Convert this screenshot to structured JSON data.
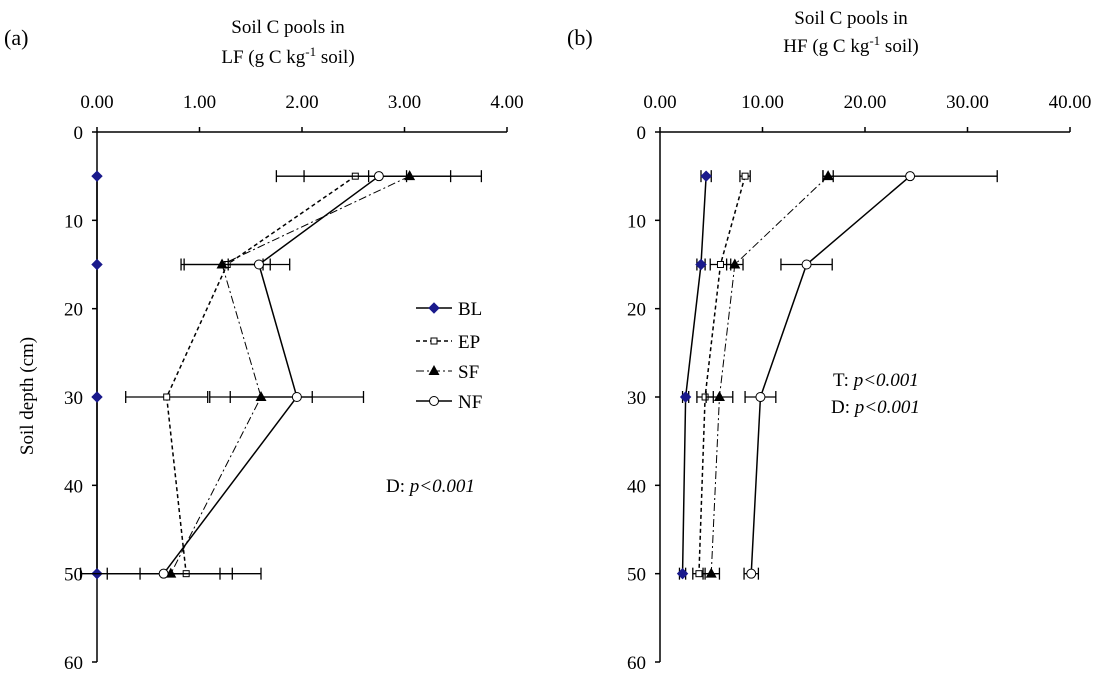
{
  "chart_data": [
    {
      "panel_label": "(a)",
      "type": "line",
      "title_line1": "Soil C pools in",
      "title_line2_pre": "LF  (g C kg",
      "title_sup": "-1",
      "title_line2_post": " soil)",
      "xlabel": "Soil C pools in LF (g C kg-1 soil)",
      "ylabel": "Soil depth (cm)",
      "xlim": [
        0,
        4
      ],
      "ylim": [
        0,
        60
      ],
      "y_reversed": true,
      "x_axis_position": "top",
      "x_ticks": [
        "0.00",
        "1.00",
        "2.00",
        "3.00",
        "4.00"
      ],
      "y_ticks": [
        "0",
        "10",
        "20",
        "30",
        "40",
        "50",
        "60"
      ],
      "depths": [
        5,
        15,
        30,
        50
      ],
      "series": [
        {
          "name": "BL",
          "x": [
            0,
            0,
            0,
            0
          ],
          "err": [
            0,
            0,
            0,
            0
          ]
        },
        {
          "name": "EP",
          "x": [
            2.52,
            1.27,
            0.68,
            0.87
          ],
          "err": [
            0.5,
            0.42,
            0.4,
            0.45
          ]
        },
        {
          "name": "SF",
          "x": [
            3.05,
            1.22,
            1.6,
            0.72
          ],
          "err": [
            0.4,
            0.4,
            0.5,
            0.88
          ]
        },
        {
          "name": "NF",
          "x": [
            2.75,
            1.58,
            1.95,
            0.65
          ],
          "err": [
            1.0,
            0.3,
            0.65,
            0.55
          ]
        }
      ],
      "legend": [
        "BL",
        "EP",
        "SF",
        "NF"
      ],
      "legend_position": "right",
      "annotations": [
        {
          "pre": "D: ",
          "italic": "p<0.001"
        }
      ],
      "grid": false
    },
    {
      "panel_label": "(b)",
      "type": "line",
      "title_line1": "Soil C pools in",
      "title_line2_pre": "HF  (g C kg",
      "title_sup": "-1",
      "title_line2_post": " soil)",
      "xlabel": "Soil C pools in HF (g C kg-1 soil)",
      "ylabel": "",
      "xlim": [
        0,
        40
      ],
      "ylim": [
        0,
        60
      ],
      "y_reversed": true,
      "x_axis_position": "top",
      "x_ticks": [
        "0.00",
        "10.00",
        "20.00",
        "30.00",
        "40.00"
      ],
      "y_ticks": [
        "0",
        "10",
        "20",
        "30",
        "40",
        "50",
        "60"
      ],
      "depths": [
        5,
        15,
        30,
        50
      ],
      "series": [
        {
          "name": "BL",
          "x": [
            4.5,
            4.0,
            2.5,
            2.2
          ],
          "err": [
            0.5,
            0.4,
            0.3,
            0.3
          ]
        },
        {
          "name": "EP",
          "x": [
            8.3,
            5.9,
            4.4,
            3.8
          ],
          "err": [
            0.5,
            1.0,
            0.8,
            0.6
          ]
        },
        {
          "name": "SF",
          "x": [
            16.4,
            7.3,
            5.8,
            5.0
          ],
          "err": [
            0.5,
            0.8,
            1.3,
            0.8
          ]
        },
        {
          "name": "NF",
          "x": [
            24.4,
            14.3,
            9.8,
            8.9
          ],
          "err": [
            8.5,
            2.5,
            1.5,
            0.7
          ]
        }
      ],
      "legend": [],
      "annotations": [
        {
          "pre": "T: ",
          "italic": "p<0.001"
        },
        {
          "pre": "D: ",
          "italic": "p<0.001"
        }
      ],
      "grid": false
    }
  ]
}
